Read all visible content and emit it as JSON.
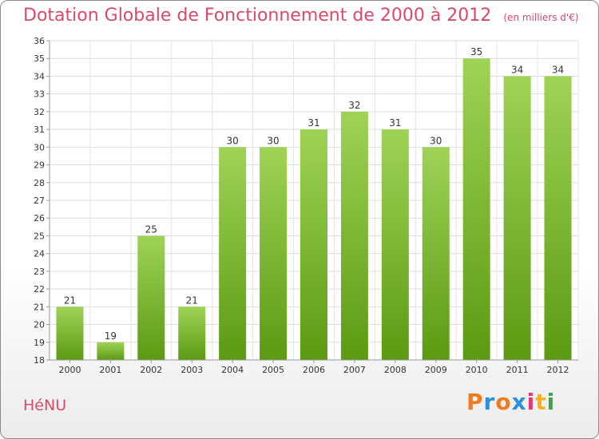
{
  "header": {
    "title": "Dotation Globale de Fonctionnement de 2000 à 2012",
    "unit": "(en milliers d'€)"
  },
  "footer": {
    "commune": "HéNU",
    "logo": [
      "P",
      "r",
      "o",
      "x",
      "i",
      "t",
      "i"
    ]
  },
  "colors": {
    "bar_top": "#9fd356",
    "bar_bottom": "#5c9a13",
    "title": "#d94a6a",
    "logo": [
      "#f07a1e",
      "#2f8fd6",
      "#f07a1e",
      "#2f8fd6",
      "#e43a73",
      "#f5b21b",
      "#3aa64a"
    ]
  },
  "chart_data": {
    "type": "bar",
    "categories": [
      "2000",
      "2001",
      "2002",
      "2003",
      "2004",
      "2005",
      "2006",
      "2007",
      "2008",
      "2009",
      "2010",
      "2011",
      "2012"
    ],
    "values": [
      21,
      19,
      25,
      21,
      30,
      30,
      31,
      32,
      31,
      30,
      35,
      34,
      34
    ],
    "ylim": [
      18,
      36
    ],
    "yticks": [
      18,
      19,
      20,
      21,
      22,
      23,
      24,
      25,
      26,
      27,
      28,
      29,
      30,
      31,
      32,
      33,
      34,
      35,
      36
    ],
    "grid": true
  }
}
